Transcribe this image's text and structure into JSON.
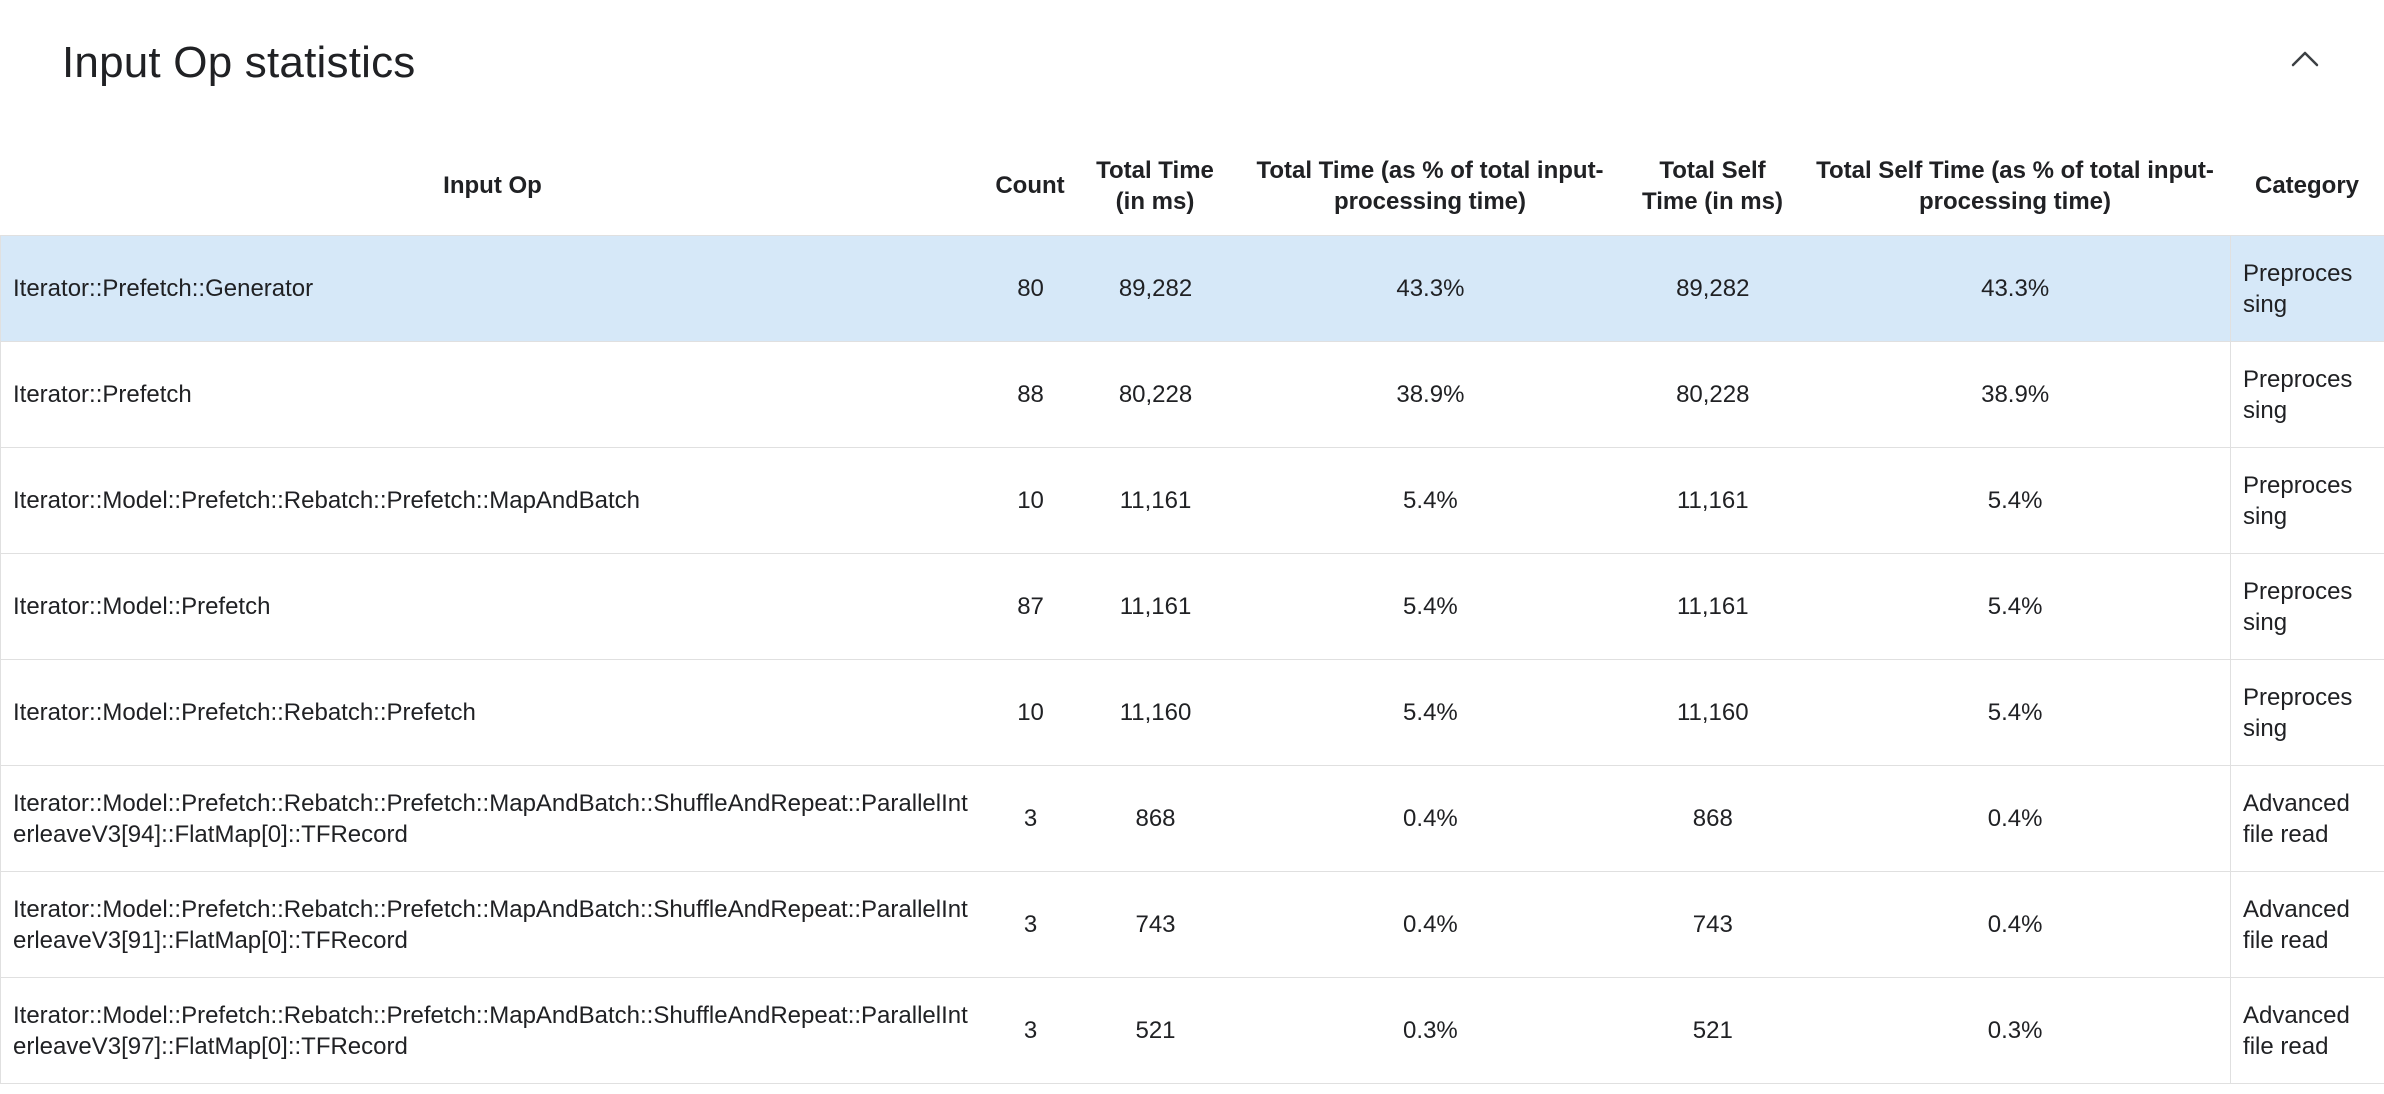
{
  "panel": {
    "title": "Input Op statistics"
  },
  "colors": {
    "row_highlight": "#d6e8f8",
    "border": "#e0e0e0",
    "text": "#202124",
    "icon": "#3c4043"
  },
  "icons": {
    "collapse": "chevron-up-icon"
  },
  "table": {
    "columns": [
      {
        "key": "input_op",
        "label": "Input Op"
      },
      {
        "key": "count",
        "label": "Count"
      },
      {
        "key": "total_time_ms",
        "label": "Total Time (in ms)"
      },
      {
        "key": "total_time_pct",
        "label": "Total Time (as % of total input-processing time)"
      },
      {
        "key": "total_self_time_ms",
        "label": "Total Self Time (in ms)"
      },
      {
        "key": "total_self_time_pct",
        "label": "Total Self Time (as % of total input-processing time)"
      },
      {
        "key": "category",
        "label": "Category"
      }
    ],
    "rows": [
      {
        "input_op": "Iterator::Prefetch::Generator",
        "count": "80",
        "total_time_ms": "89,282",
        "total_time_pct": "43.3%",
        "total_self_time_ms": "89,282",
        "total_self_time_pct": "43.3%",
        "category": "Preprocessing",
        "highlighted": true
      },
      {
        "input_op": "Iterator::Prefetch",
        "count": "88",
        "total_time_ms": "80,228",
        "total_time_pct": "38.9%",
        "total_self_time_ms": "80,228",
        "total_self_time_pct": "38.9%",
        "category": "Preprocessing",
        "highlighted": false
      },
      {
        "input_op": "Iterator::Model::Prefetch::Rebatch::Prefetch::MapAndBatch",
        "count": "10",
        "total_time_ms": "11,161",
        "total_time_pct": "5.4%",
        "total_self_time_ms": "11,161",
        "total_self_time_pct": "5.4%",
        "category": "Preprocessing",
        "highlighted": false
      },
      {
        "input_op": "Iterator::Model::Prefetch",
        "count": "87",
        "total_time_ms": "11,161",
        "total_time_pct": "5.4%",
        "total_self_time_ms": "11,161",
        "total_self_time_pct": "5.4%",
        "category": "Preprocessing",
        "highlighted": false
      },
      {
        "input_op": "Iterator::Model::Prefetch::Rebatch::Prefetch",
        "count": "10",
        "total_time_ms": "11,160",
        "total_time_pct": "5.4%",
        "total_self_time_ms": "11,160",
        "total_self_time_pct": "5.4%",
        "category": "Preprocessing",
        "highlighted": false
      },
      {
        "input_op": "Iterator::Model::Prefetch::Rebatch::Prefetch::MapAndBatch::ShuffleAndRepeat::ParallelInterleaveV3[94]::FlatMap[0]::TFRecord",
        "count": "3",
        "total_time_ms": "868",
        "total_time_pct": "0.4%",
        "total_self_time_ms": "868",
        "total_self_time_pct": "0.4%",
        "category": "Advanced file read",
        "highlighted": false
      },
      {
        "input_op": "Iterator::Model::Prefetch::Rebatch::Prefetch::MapAndBatch::ShuffleAndRepeat::ParallelInterleaveV3[91]::FlatMap[0]::TFRecord",
        "count": "3",
        "total_time_ms": "743",
        "total_time_pct": "0.4%",
        "total_self_time_ms": "743",
        "total_self_time_pct": "0.4%",
        "category": "Advanced file read",
        "highlighted": false
      },
      {
        "input_op": "Iterator::Model::Prefetch::Rebatch::Prefetch::MapAndBatch::ShuffleAndRepeat::ParallelInterleaveV3[97]::FlatMap[0]::TFRecord",
        "count": "3",
        "total_time_ms": "521",
        "total_time_pct": "0.3%",
        "total_self_time_ms": "521",
        "total_self_time_pct": "0.3%",
        "category": "Advanced file read",
        "highlighted": false
      }
    ]
  }
}
